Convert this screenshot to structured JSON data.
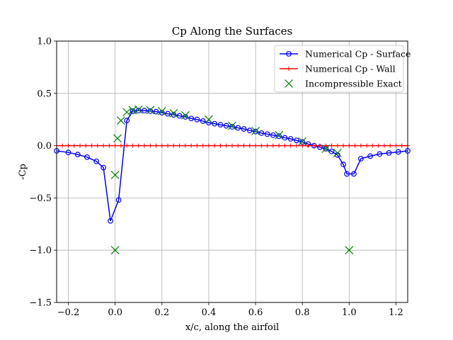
{
  "chart_data": {
    "type": "line",
    "title": "Cp Along the Surfaces",
    "xlabel": "x/c, along the airfoil",
    "ylabel": "-Cp",
    "xlim": [
      -0.25,
      1.25
    ],
    "ylim": [
      -1.5,
      1.0
    ],
    "xticks": [
      -0.2,
      0.0,
      0.2,
      0.4,
      0.6,
      0.8,
      1.0,
      1.2
    ],
    "xtick_labels": [
      "−0.2",
      "0.0",
      "0.2",
      "0.4",
      "0.6",
      "0.8",
      "1.0",
      "1.2"
    ],
    "yticks": [
      -1.5,
      -1.0,
      -0.5,
      0.0,
      0.5,
      1.0
    ],
    "ytick_labels": [
      "−1.5",
      "−1.0",
      "−0.5",
      "0.0",
      "0.5",
      "1.0"
    ],
    "grid": true,
    "legend_position": "top-right",
    "series": [
      {
        "name": "Numerical Cp - Surface",
        "color": "#0000ff",
        "marker": "open-circle",
        "x": [
          -0.25,
          -0.2,
          -0.16,
          -0.12,
          -0.08,
          -0.05,
          -0.02,
          0.015,
          0.05,
          0.075,
          0.1,
          0.125,
          0.15,
          0.175,
          0.2,
          0.225,
          0.25,
          0.275,
          0.3,
          0.325,
          0.35,
          0.375,
          0.4,
          0.425,
          0.45,
          0.475,
          0.5,
          0.525,
          0.55,
          0.575,
          0.6,
          0.625,
          0.65,
          0.675,
          0.7,
          0.725,
          0.75,
          0.775,
          0.8,
          0.825,
          0.85,
          0.875,
          0.9,
          0.925,
          0.95,
          0.975,
          0.99,
          1.02,
          1.05,
          1.09,
          1.13,
          1.17,
          1.21,
          1.25
        ],
        "y": [
          -0.05,
          -0.065,
          -0.085,
          -0.11,
          -0.15,
          -0.21,
          -0.72,
          -0.52,
          0.24,
          0.33,
          0.335,
          0.335,
          0.33,
          0.325,
          0.315,
          0.305,
          0.295,
          0.285,
          0.275,
          0.26,
          0.25,
          0.235,
          0.22,
          0.21,
          0.2,
          0.19,
          0.18,
          0.17,
          0.16,
          0.145,
          0.135,
          0.12,
          0.11,
          0.1,
          0.09,
          0.075,
          0.065,
          0.05,
          0.035,
          0.015,
          0.0,
          -0.015,
          -0.03,
          -0.055,
          -0.09,
          -0.18,
          -0.27,
          -0.27,
          -0.125,
          -0.1,
          -0.08,
          -0.07,
          -0.06,
          -0.05
        ]
      },
      {
        "name": "Numerical Cp - Wall",
        "color": "#ff0000",
        "marker": "plus",
        "x": [
          -0.25,
          -0.225,
          -0.2,
          -0.175,
          -0.15,
          -0.125,
          -0.1,
          -0.075,
          -0.05,
          -0.025,
          0.0,
          0.025,
          0.05,
          0.075,
          0.1,
          0.125,
          0.15,
          0.175,
          0.2,
          0.225,
          0.25,
          0.275,
          0.3,
          0.325,
          0.35,
          0.375,
          0.4,
          0.425,
          0.45,
          0.475,
          0.5,
          0.525,
          0.55,
          0.575,
          0.6,
          0.625,
          0.65,
          0.675,
          0.7,
          0.725,
          0.75,
          0.775,
          0.8,
          0.825,
          0.85,
          0.875,
          0.9,
          0.925,
          0.95,
          0.975,
          1.0,
          1.025,
          1.05,
          1.075,
          1.1,
          1.125,
          1.15,
          1.175,
          1.2,
          1.225,
          1.25
        ],
        "y": [
          0.0,
          0.0,
          0.0,
          0.0,
          0.0,
          0.0,
          0.0,
          0.0,
          0.0,
          0.0,
          0.0,
          0.0,
          0.0,
          0.0,
          0.0,
          0.0,
          0.0,
          0.0,
          0.0,
          0.0,
          0.0,
          0.0,
          0.0,
          0.0,
          0.0,
          0.0,
          0.0,
          0.0,
          0.0,
          0.0,
          0.0,
          0.0,
          0.0,
          0.0,
          0.0,
          0.0,
          0.0,
          0.0,
          0.0,
          0.0,
          0.0,
          0.0,
          0.0,
          0.0,
          0.0,
          0.0,
          0.0,
          0.0,
          0.0,
          0.0,
          0.0,
          0.0,
          0.0,
          0.0,
          0.0,
          0.0,
          0.0,
          0.0,
          0.0,
          0.0,
          0.0
        ]
      },
      {
        "name": "Incompressible Exact",
        "color": "#008000",
        "marker": "x",
        "x": [
          0.0,
          0.0,
          0.01,
          0.025,
          0.05,
          0.075,
          0.1,
          0.15,
          0.2,
          0.25,
          0.3,
          0.4,
          0.5,
          0.6,
          0.7,
          0.8,
          0.9,
          0.95,
          1.0
        ],
        "y": [
          -1.0,
          -0.28,
          0.07,
          0.24,
          0.32,
          0.34,
          0.345,
          0.34,
          0.33,
          0.31,
          0.29,
          0.25,
          0.19,
          0.14,
          0.1,
          0.04,
          -0.03,
          -0.07,
          -1.0
        ]
      }
    ]
  }
}
